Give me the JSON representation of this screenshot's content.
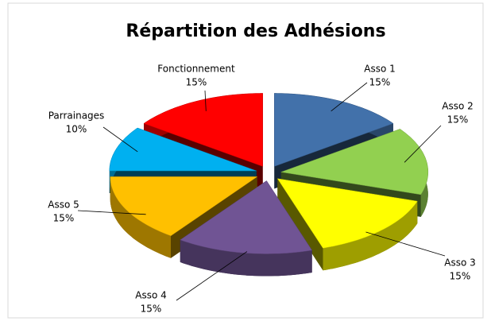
{
  "chart_data": {
    "type": "pie",
    "title": "Répartition des Adhésions",
    "categories": [
      "Asso 1",
      "Asso 2",
      "Asso 3",
      "Asso 4",
      "Asso 5",
      "Parrainages",
      "Fonctionnement"
    ],
    "values": [
      15,
      15,
      15,
      15,
      15,
      10,
      15
    ],
    "value_labels": [
      "15%",
      "15%",
      "15%",
      "15%",
      "15%",
      "10%",
      "15%"
    ],
    "colors": [
      "#4271aa",
      "#92d050",
      "#ffff00",
      "#705494",
      "#ffc000",
      "#00b0f0",
      "#ff0000"
    ]
  }
}
